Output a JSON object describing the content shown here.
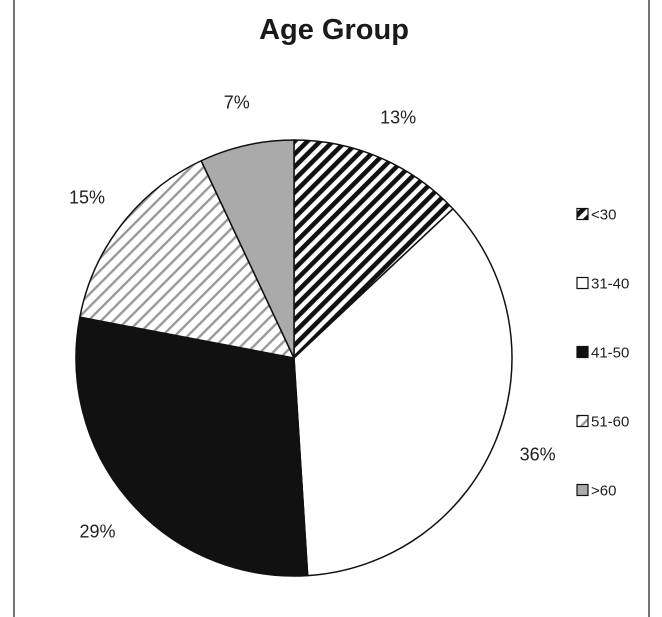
{
  "chart_data": {
    "type": "pie",
    "title": "Age Group",
    "start_angle_deg": 0,
    "direction": "clockwise",
    "legend_position": "right",
    "slices": [
      {
        "name": "<30",
        "value": 13,
        "label": "13%",
        "fill": "diag-black",
        "color": "#111111"
      },
      {
        "name": "31-40",
        "value": 36,
        "label": "36%",
        "fill": "solid",
        "color": "#ffffff"
      },
      {
        "name": "41-50",
        "value": 29,
        "label": "29%",
        "fill": "solid",
        "color": "#111111"
      },
      {
        "name": "51-60",
        "value": 15,
        "label": "15%",
        "fill": "diag-light",
        "color": "#9a9a9a"
      },
      {
        "name": ">60",
        "value": 7,
        "label": "7%",
        "fill": "solid",
        "color": "#aaaaaa"
      }
    ]
  }
}
